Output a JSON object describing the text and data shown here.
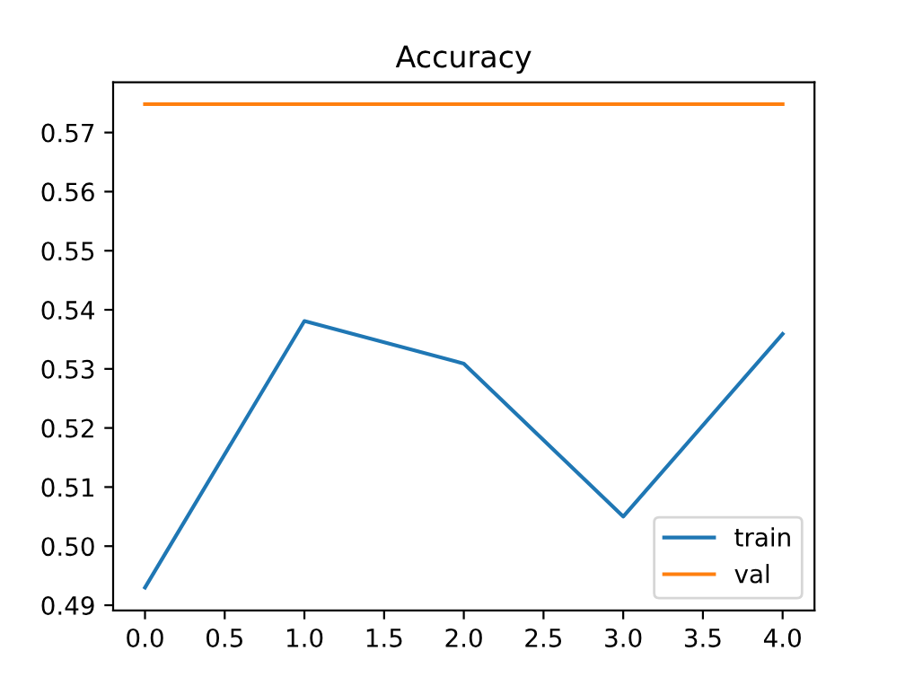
{
  "chart_data": {
    "type": "line",
    "title": "Accuracy",
    "x": [
      0,
      1,
      2,
      3,
      4
    ],
    "series": [
      {
        "name": "train",
        "color": "#1f77b4",
        "values": [
          0.493,
          0.5381,
          0.5309,
          0.505,
          0.5359
        ]
      },
      {
        "name": "val",
        "color": "#ff7f0e",
        "values": [
          0.5748,
          0.5748,
          0.5748,
          0.5748,
          0.5748
        ]
      }
    ],
    "xlim": [
      -0.2,
      4.2
    ],
    "xticks": [
      {
        "value": 0,
        "label": "0.0"
      },
      {
        "value": 0.5,
        "label": "0.5"
      },
      {
        "value": 1,
        "label": "1.0"
      },
      {
        "value": 1.5,
        "label": "1.5"
      },
      {
        "value": 2,
        "label": "2.0"
      },
      {
        "value": 2.5,
        "label": "2.5"
      },
      {
        "value": 3,
        "label": "3.0"
      },
      {
        "value": 3.5,
        "label": "3.5"
      },
      {
        "value": 4,
        "label": "4.0"
      }
    ],
    "ylim": [
      0.4891,
      0.5785
    ],
    "yticks": [
      0.49,
      {
        "value": 0.5,
        "label": "0.50"
      },
      0.51,
      0.52,
      0.53,
      0.54,
      0.55,
      0.56,
      0.57
    ],
    "legend": "lower right",
    "grid": false
  }
}
